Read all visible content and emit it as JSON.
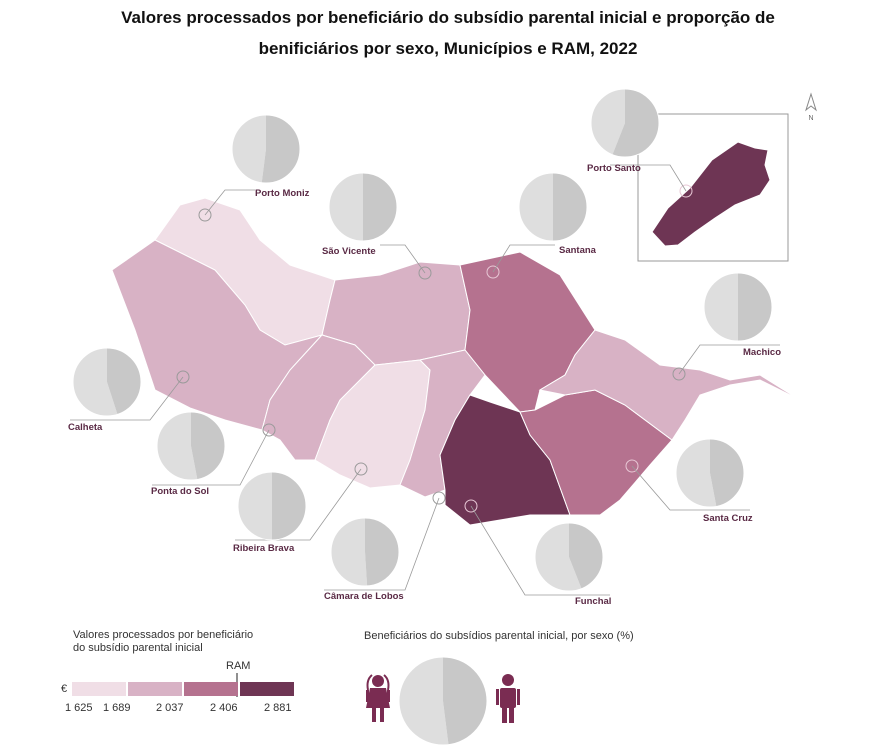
{
  "title_line1": "Valores processados por beneficiário do subsídio parental inicial e proporção de",
  "title_line2": "benificiários por sexo, Municípios e RAM, 2022",
  "north_label": "N",
  "colors": {
    "c1": "#f0dee6",
    "c2": "#d8b2c5",
    "c3": "#b5728f",
    "c4": "#6e3554",
    "pie_female": "#dedede",
    "pie_male": "#c8c8c8",
    "label": "#5a2a45"
  },
  "municipalities": [
    {
      "name": "Porto Moniz",
      "class": 1,
      "female_pct": 48
    },
    {
      "name": "São Vicente",
      "class": 2,
      "female_pct": 50
    },
    {
      "name": "Santana",
      "class": 3,
      "female_pct": 50
    },
    {
      "name": "Porto Santo",
      "class": 4,
      "female_pct": 44
    },
    {
      "name": "Machico",
      "class": 2,
      "female_pct": 50
    },
    {
      "name": "Calheta",
      "class": 2,
      "female_pct": 55
    },
    {
      "name": "Ponta do Sol",
      "class": 2,
      "female_pct": 53
    },
    {
      "name": "Ribeira Brava",
      "class": 1,
      "female_pct": 50
    },
    {
      "name": "Câmara de Lobos",
      "class": 2,
      "female_pct": 51
    },
    {
      "name": "Santa Cruz",
      "class": 3,
      "female_pct": 53
    },
    {
      "name": "Funchal",
      "class": 4,
      "female_pct": 56
    }
  ],
  "legend": {
    "values_title_1": "Valores processados por beneficiário",
    "values_title_2": "do subsídio parental inicial",
    "currency": "€",
    "ram_label": "RAM",
    "ticks": [
      "1 625",
      "1 689",
      "2 037",
      "2 406",
      "2 881"
    ],
    "pie_title": "Beneficiários do subsídios parental inicial, por sexo (%)",
    "ram_female_pct": 52,
    "female_icon": "female-person-icon",
    "male_icon": "male-person-icon"
  }
}
